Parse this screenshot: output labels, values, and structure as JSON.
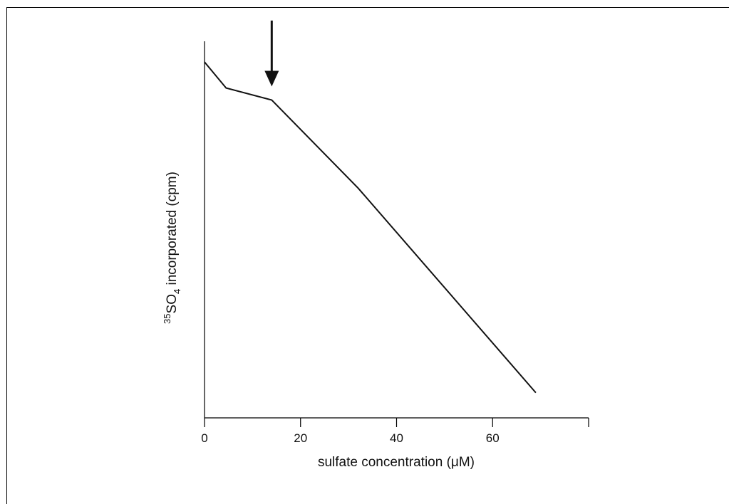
{
  "chart_data": {
    "type": "line",
    "title": "",
    "xlabel": "sulfate concentration (μM)",
    "ylabel": {
      "isotope": "35",
      "base": "SO",
      "subscript": "4",
      "rest": " incorporated (cpm)"
    },
    "xlim": [
      0,
      80
    ],
    "ylim": [
      0,
      100
    ],
    "x_ticks": [
      0,
      20,
      40,
      60,
      80
    ],
    "x_tick_labels": [
      "0",
      "20",
      "40",
      "60",
      ""
    ],
    "y_ticks": [],
    "grid": false,
    "legend": "none",
    "series": [
      {
        "x": [
          0,
          4.5,
          14,
          32,
          69
        ],
        "y": [
          94.5,
          87.6,
          84.4,
          61,
          6.7
        ]
      }
    ],
    "annotations": [
      {
        "type": "arrow",
        "x": 14,
        "y_from": 105.5,
        "y_to": 88
      }
    ],
    "colors": {
      "line": "#111111",
      "axis": "#000000",
      "arrow": "#111111"
    }
  }
}
